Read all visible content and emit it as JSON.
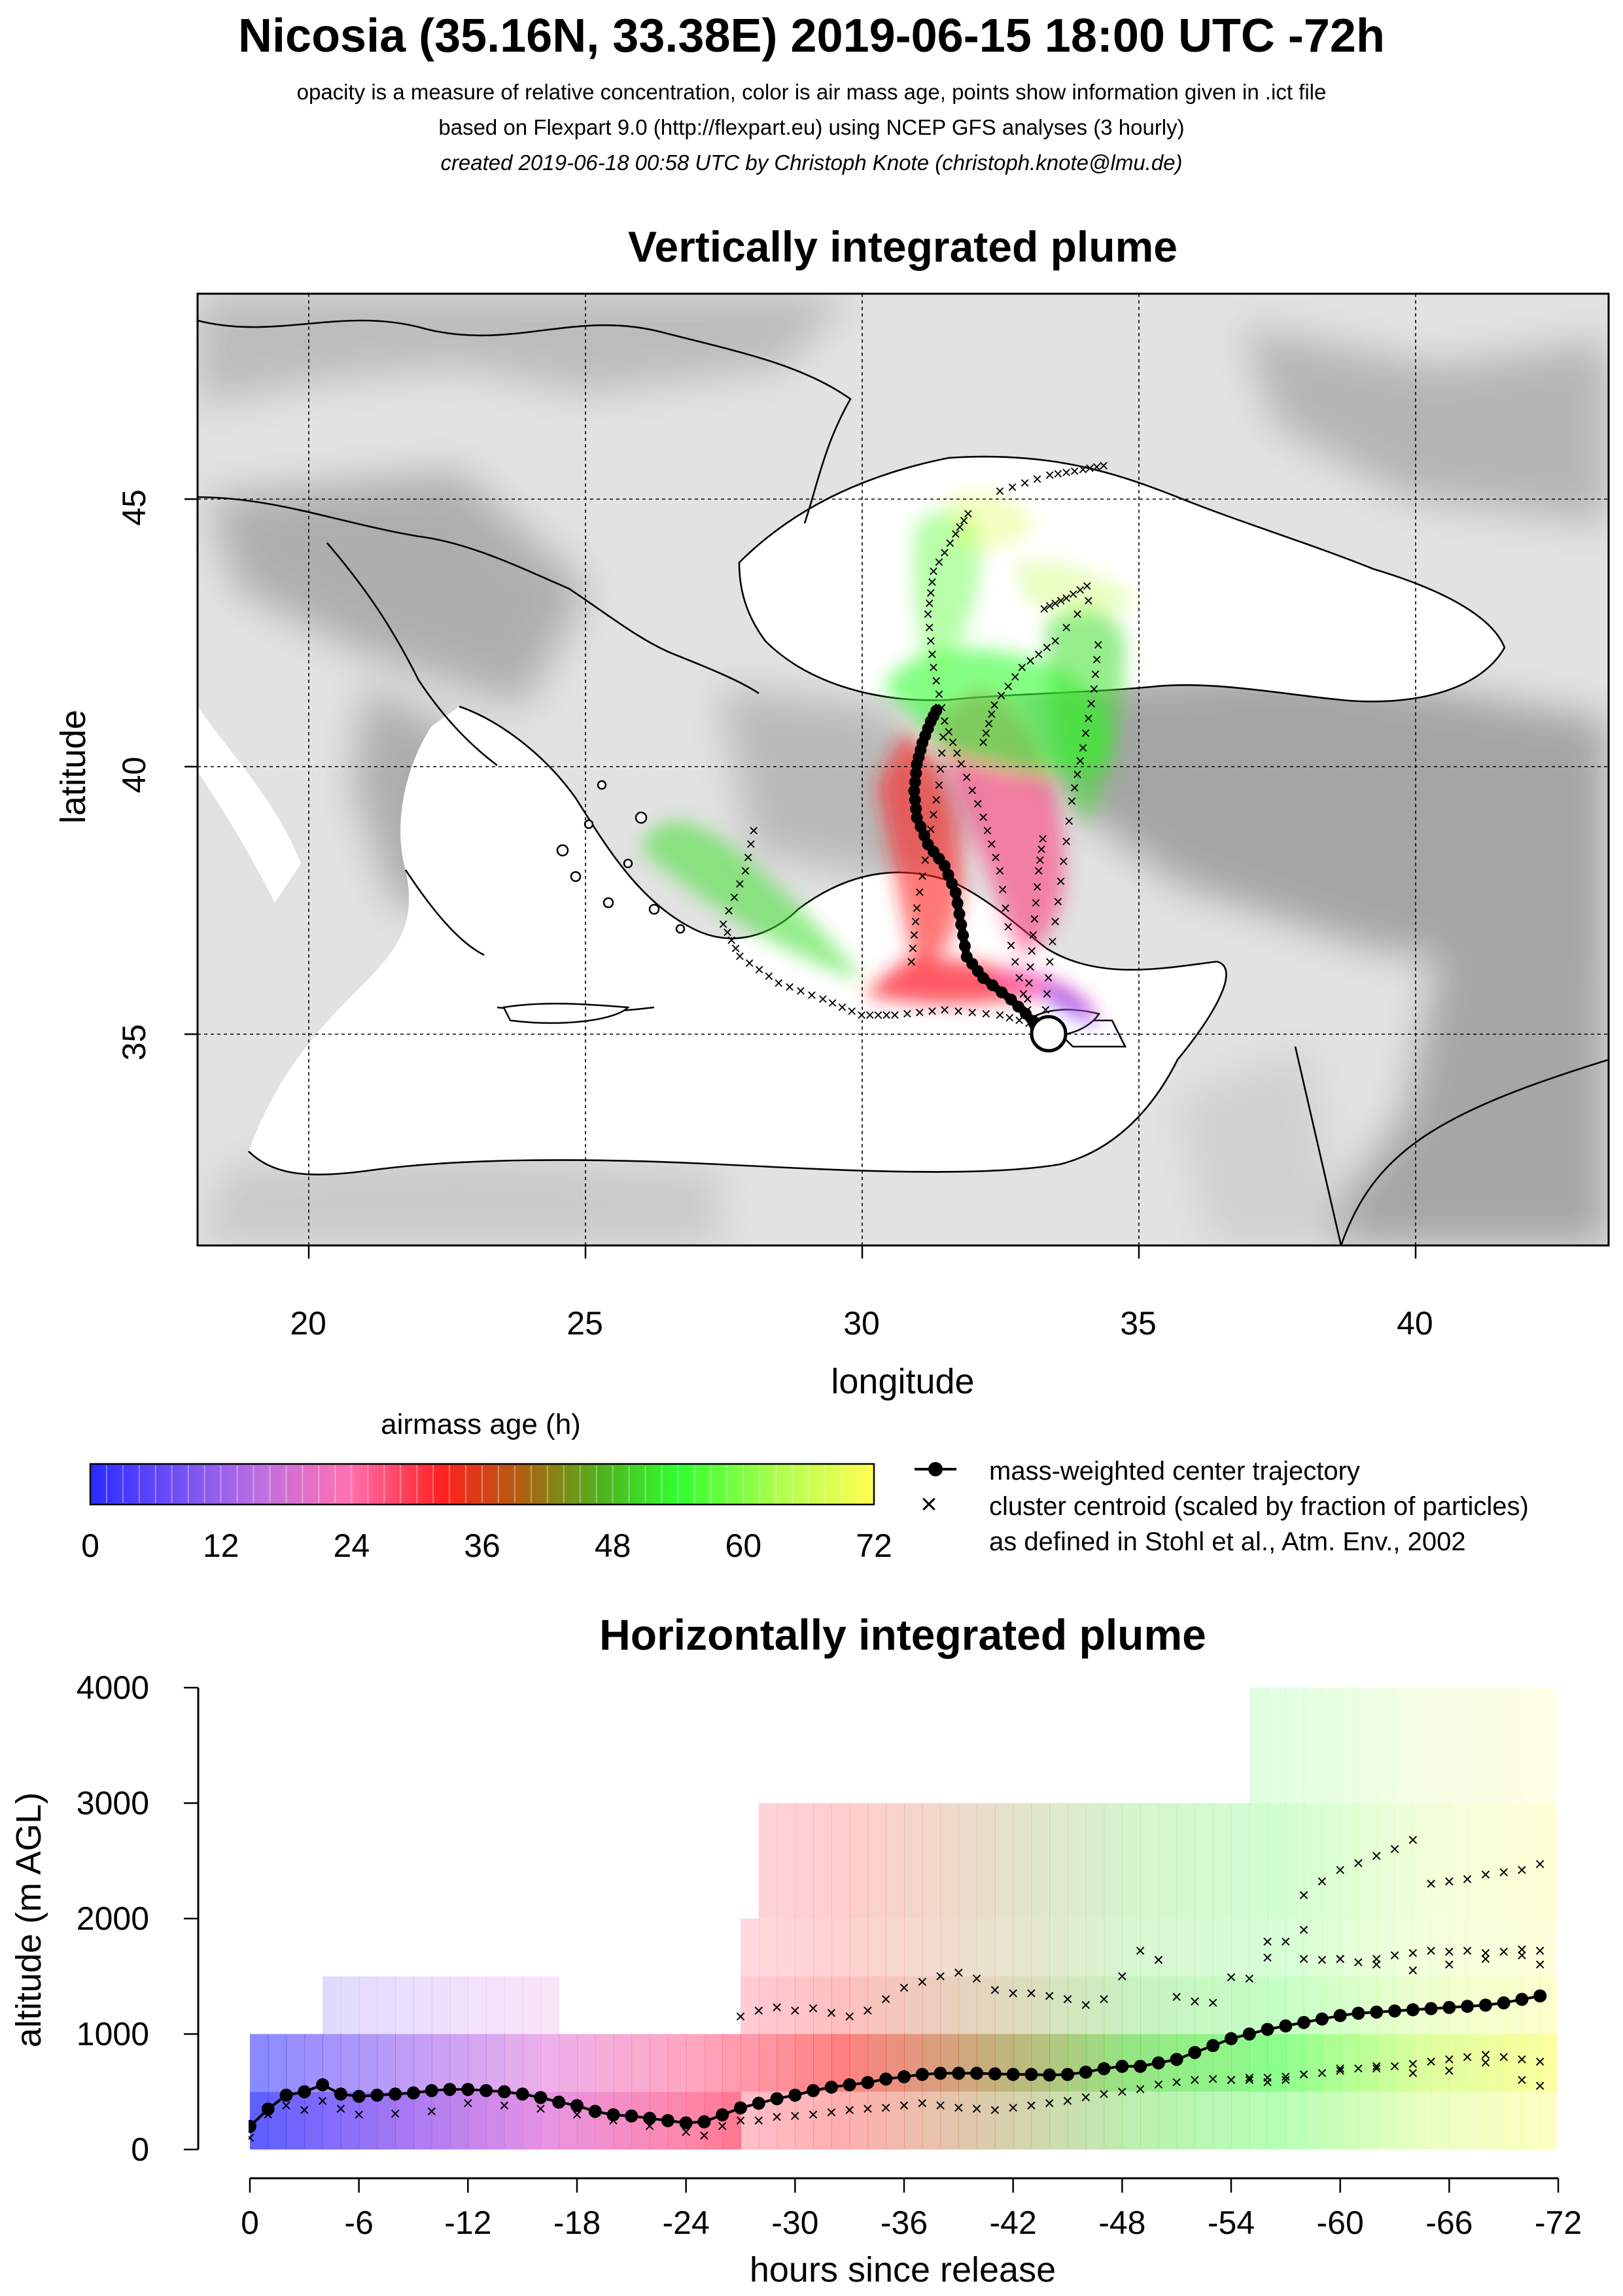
{
  "header": {
    "title": "Nicosia (35.16N, 33.38E) 2019-06-15 18:00 UTC -72h",
    "line1": "opacity is a measure of relative concentration, color is air mass age, points show information given in .ict file",
    "line2": "based on Flexpart 9.0 (http://flexpart.eu) using NCEP GFS analyses (3 hourly)",
    "line3": "created 2019-06-18 00:58 UTC by Christoph Knote (christoph.knote@lmu.de)"
  },
  "colors": {
    "age_ramp": [
      "#2b2bff",
      "#8a4cf0",
      "#e070d8",
      "#ff5c8a",
      "#ff1a1a",
      "#9a6a10",
      "#40d020",
      "#30ff30",
      "#c0ff50",
      "#ffff50"
    ],
    "terrain_base": "#e3e3e3",
    "terrain_dark": "#9a9a9a"
  },
  "chart_data": [
    {
      "type": "map",
      "title": "Vertically integrated plume",
      "xlabel": "longitude",
      "ylabel": "latitude",
      "xlim": [
        18,
        43.5
      ],
      "ylim": [
        31.2,
        49
      ],
      "xticks": [
        20,
        25,
        30,
        35,
        40
      ],
      "yticks": [
        35,
        40,
        45
      ],
      "grid": true,
      "release_point": {
        "lon": 33.38,
        "lat": 35.16
      },
      "center_trajectory": {
        "lon": [
          33.38,
          33.1,
          32.7,
          32.2,
          31.9,
          31.8,
          31.7,
          31.5,
          31.2,
          31.0,
          30.95,
          31.0,
          31.1,
          31.25,
          31.4
        ],
        "lat": [
          35.16,
          35.4,
          35.8,
          36.2,
          36.6,
          37.2,
          37.8,
          38.3,
          38.7,
          39.2,
          39.7,
          40.2,
          40.6,
          41.0,
          41.3
        ]
      },
      "cluster_tracks": [
        {
          "lon": [
            33.2,
            32.5,
            31.5,
            30.6,
            30.0,
            29.3,
            28.5,
            27.8,
            27.5,
            27.9,
            28.1
          ],
          "lat": [
            35.3,
            35.5,
            35.6,
            35.5,
            35.5,
            35.8,
            36.1,
            36.6,
            37.2,
            38.2,
            39.2
          ]
        },
        {
          "lon": [
            33.3,
            33.4,
            33.6,
            33.8,
            34.0,
            34.2,
            34.3
          ],
          "lat": [
            35.3,
            36.5,
            38.0,
            39.5,
            40.5,
            41.6,
            42.7
          ]
        },
        {
          "lon": [
            33.0,
            32.7,
            32.5,
            32.2,
            31.8,
            31.5,
            31.3,
            31.2,
            31.3,
            31.7,
            32.0
          ],
          "lat": [
            35.6,
            36.8,
            38.2,
            39.2,
            40.2,
            41.0,
            42.0,
            43.0,
            43.8,
            44.5,
            45.0
          ]
        },
        {
          "lon": [
            33.0,
            33.1,
            33.2,
            33.3
          ],
          "lat": [
            35.8,
            37.0,
            38.2,
            39.0
          ]
        },
        {
          "lon": [
            32.2,
            32.4,
            32.9,
            33.5,
            34.3
          ],
          "lat": [
            40.6,
            41.3,
            42.0,
            42.5,
            43.5
          ]
        },
        {
          "lon": [
            32.5,
            33.4,
            34.0,
            34.5
          ],
          "lat": [
            45.3,
            45.6,
            45.7,
            45.8
          ]
        },
        {
          "lon": [
            33.3,
            33.7,
            34.2
          ],
          "lat": [
            43.1,
            43.3,
            43.6
          ]
        },
        {
          "lon": [
            30.9,
            31.0,
            31.2,
            31.4,
            31.5
          ],
          "lat": [
            36.5,
            37.5,
            38.7,
            39.8,
            41.0
          ]
        }
      ]
    },
    {
      "type": "colorbar",
      "title": "airmass age (h)",
      "range": [
        0,
        72
      ],
      "ticks": [
        0,
        12,
        24,
        36,
        48,
        60,
        72
      ]
    },
    {
      "type": "legend",
      "entries": [
        "mass-weighted center trajectory",
        "cluster centroid (scaled by fraction of particles)",
        "as defined in Stohl et al., Atm. Env., 2002"
      ]
    },
    {
      "type": "scatter",
      "title": "Horizontally integrated plume",
      "xlabel": "hours since release",
      "ylabel": "altitude (m AGL)",
      "xlim": [
        0,
        -72
      ],
      "ylim": [
        0,
        4000
      ],
      "xticks": [
        0,
        -6,
        -12,
        -18,
        -24,
        -30,
        -36,
        -42,
        -48,
        -54,
        -60,
        -66,
        -72
      ],
      "xtick_labels": [
        "0",
        "-6",
        "-12",
        "-18",
        "-24",
        "-30",
        "-36",
        "-42",
        "-48",
        "-54",
        "-60",
        "-66",
        "-72"
      ],
      "yticks": [
        0,
        1000,
        2000,
        3000,
        4000
      ],
      "center_x": [
        0,
        -1,
        -2,
        -3,
        -4,
        -5,
        -6,
        -7,
        -8,
        -9,
        -10,
        -11,
        -12,
        -13,
        -14,
        -15,
        -16,
        -17,
        -18,
        -19,
        -20,
        -21,
        -22,
        -23,
        -24,
        -25,
        -26,
        -27,
        -28,
        -29,
        -30,
        -31,
        -32,
        -33,
        -34,
        -35,
        -36,
        -37,
        -38,
        -39,
        -40,
        -41,
        -42,
        -43,
        -44,
        -45,
        -46,
        -47,
        -48,
        -49,
        -50,
        -51,
        -52,
        -53,
        -54,
        -55,
        -56,
        -57,
        -58,
        -59,
        -60,
        -61,
        -62,
        -63,
        -64,
        -65,
        -66,
        -67,
        -68,
        -69,
        -70,
        -71
      ],
      "center_y": [
        200,
        350,
        470,
        500,
        560,
        480,
        460,
        470,
        480,
        490,
        510,
        520,
        520,
        510,
        500,
        480,
        450,
        410,
        380,
        330,
        300,
        290,
        270,
        250,
        230,
        240,
        300,
        360,
        400,
        440,
        470,
        510,
        540,
        560,
        580,
        610,
        630,
        650,
        660,
        660,
        660,
        655,
        650,
        650,
        645,
        650,
        670,
        700,
        720,
        720,
        750,
        780,
        840,
        900,
        960,
        1000,
        1040,
        1070,
        1100,
        1130,
        1160,
        1180,
        1190,
        1200,
        1210,
        1220,
        1230,
        1240,
        1250,
        1270,
        1300,
        1330
      ],
      "crosses": [
        {
          "x": [
            0,
            -1,
            -2,
            -3,
            -4,
            -5,
            -6,
            -8,
            -10,
            -12,
            -14,
            -16,
            -17,
            -18,
            -20,
            -22,
            -24,
            -25,
            -26,
            -27,
            -28,
            -29,
            -30,
            -31,
            -32,
            -33,
            -34,
            -35,
            -36,
            -37,
            -38,
            -39,
            -40,
            -41,
            -42,
            -43,
            -44,
            -45,
            -46,
            -47,
            -48,
            -49,
            -50,
            -51,
            -52,
            -53,
            -54,
            -55,
            -56,
            -57,
            -58,
            -59,
            -60,
            -61,
            -62,
            -63,
            -64,
            -65,
            -66,
            -67,
            -68,
            -69,
            -70,
            -71
          ],
          "y": [
            100,
            300,
            380,
            340,
            420,
            350,
            300,
            310,
            330,
            400,
            380,
            350,
            400,
            300,
            250,
            200,
            150,
            120,
            200,
            250,
            250,
            280,
            290,
            300,
            320,
            340,
            350,
            360,
            380,
            400,
            380,
            360,
            350,
            340,
            360,
            380,
            400,
            420,
            450,
            480,
            500,
            520,
            560,
            580,
            600,
            610,
            600,
            600,
            620,
            630,
            650,
            660,
            680,
            700,
            700,
            720,
            740,
            760,
            780,
            800,
            820,
            800,
            780,
            760
          ]
        },
        {
          "x": [
            -27,
            -28,
            -29,
            -30,
            -31,
            -32,
            -33,
            -34,
            -35,
            -36,
            -37,
            -38,
            -39,
            -40,
            -41,
            -42,
            -43,
            -44,
            -45,
            -46,
            -47,
            -48,
            -49,
            -50,
            -51,
            -52,
            -53,
            -54,
            -55,
            -56,
            -57,
            -58,
            -59,
            -60,
            -61,
            -62,
            -63,
            -64,
            -65,
            -66,
            -67,
            -68,
            -69,
            -70,
            -71
          ],
          "y": [
            1150,
            1200,
            1230,
            1200,
            1220,
            1180,
            1150,
            1200,
            1300,
            1400,
            1450,
            1500,
            1530,
            1480,
            1380,
            1350,
            1350,
            1330,
            1300,
            1250,
            1300,
            1500,
            1720,
            1640,
            1320,
            1280,
            1270,
            1490,
            1480,
            1660,
            1800,
            1650,
            1640,
            1650,
            1620,
            1650,
            1680,
            1700,
            1720,
            1710,
            1720,
            1700,
            1710,
            1730,
            1720
          ]
        },
        {
          "x": [
            -58,
            -59,
            -60,
            -61,
            -62,
            -63,
            -64,
            -65,
            -66,
            -67,
            -68,
            -69,
            -70,
            -71
          ],
          "y": [
            2200,
            2320,
            2420,
            2480,
            2540,
            2600,
            2680,
            2300,
            2320,
            2340,
            2380,
            2400,
            2420,
            2470
          ]
        },
        {
          "x": [
            -56,
            -58,
            -60,
            -62,
            -64,
            -66,
            -68,
            -70,
            -71
          ],
          "y": [
            1800,
            1900,
            1650,
            1600,
            1550,
            1600,
            1650,
            1680,
            1600
          ]
        },
        {
          "x": [
            -54,
            -55,
            -56,
            -57,
            -58,
            -60,
            -62,
            -64,
            -66,
            -68,
            -70,
            -71
          ],
          "y": [
            600,
            620,
            580,
            600,
            650,
            700,
            720,
            660,
            680,
            750,
            600,
            550
          ]
        }
      ]
    }
  ]
}
